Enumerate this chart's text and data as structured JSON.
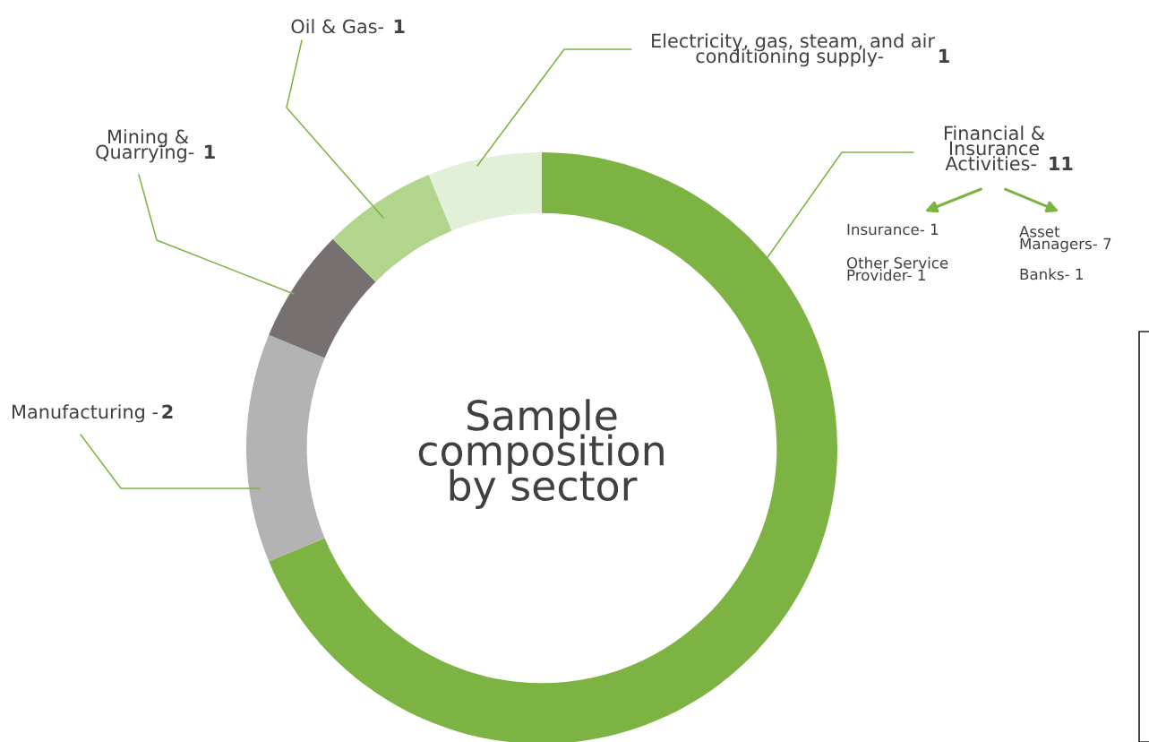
{
  "chart_data": {
    "type": "donut",
    "title": "Sample\ncomposition\nby sector",
    "categories": [
      "Financial &\nInsurance\nActivities- ",
      "Manufacturing -",
      "Mining &\nQuarrying- ",
      "Oil & Gas- ",
      "Electricity, gas, steam, and air\nconditioning supply- "
    ],
    "values": [
      11,
      2,
      1,
      1,
      1
    ],
    "colors": [
      "#7db343",
      "#b4b3b4",
      "#767170",
      "#b2d58e",
      "#e2f0d8"
    ],
    "data_labels": true,
    "annotations": [
      "Insurance- 1",
      "Asset\nManagers- 7",
      "Other Service\nProvider- 1",
      "Banks- 1"
    ]
  }
}
